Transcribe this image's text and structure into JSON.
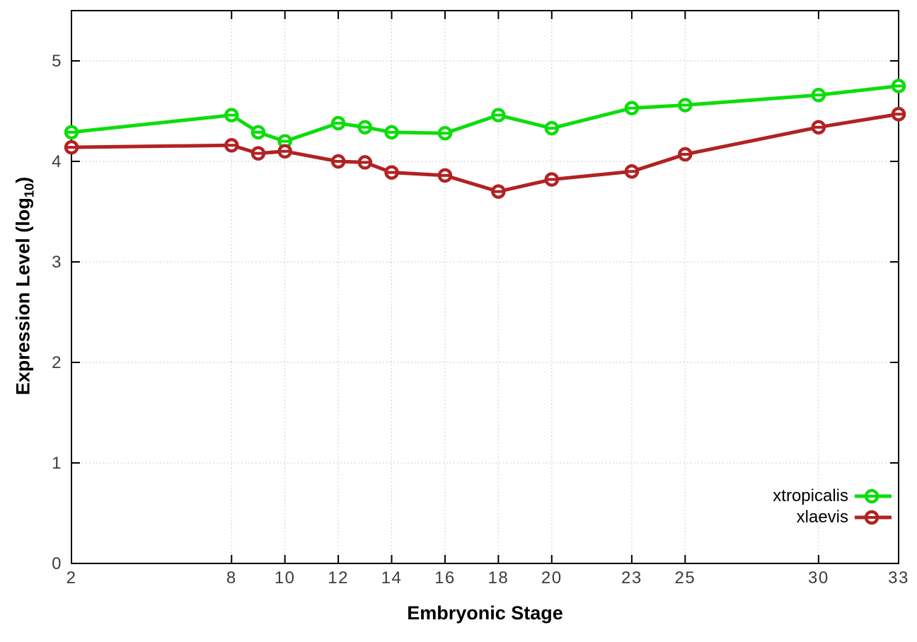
{
  "chart_data": {
    "type": "line",
    "title": "",
    "xlabel": "Embryonic Stage",
    "ylabel": "Expression Level (log10)",
    "xlim": [
      2,
      33
    ],
    "ylim": [
      0,
      5.5
    ],
    "x_ticks": [
      2,
      8,
      10,
      12,
      14,
      16,
      18,
      20,
      23,
      25,
      30,
      33
    ],
    "y_ticks": [
      0,
      1,
      2,
      3,
      4,
      5
    ],
    "grid": true,
    "legend_position": "inside-bottom-right",
    "marker": "open-circle-with-horizontal-errorbar",
    "x": [
      2,
      8,
      9,
      10,
      12,
      13,
      14,
      16,
      18,
      20,
      23,
      25,
      30,
      33
    ],
    "series": [
      {
        "name": "xtropicalis",
        "color": "#0cdd0c",
        "values": [
          4.29,
          4.46,
          4.29,
          4.2,
          4.38,
          4.34,
          4.29,
          4.28,
          4.46,
          4.33,
          4.53,
          4.56,
          4.66,
          4.75
        ]
      },
      {
        "name": "xlaevis",
        "color": "#b22222",
        "values": [
          4.14,
          4.16,
          4.08,
          4.1,
          4.0,
          3.99,
          3.89,
          3.86,
          3.7,
          3.82,
          3.9,
          4.07,
          4.34,
          4.47
        ]
      }
    ],
    "colors": {
      "border": "#000000",
      "grid": "#bdbdbd",
      "tick_label": "#3d3d3d"
    }
  },
  "ylabel_parts": {
    "prefix": "Expression Level (log",
    "sub": "10",
    "suffix": ")"
  }
}
